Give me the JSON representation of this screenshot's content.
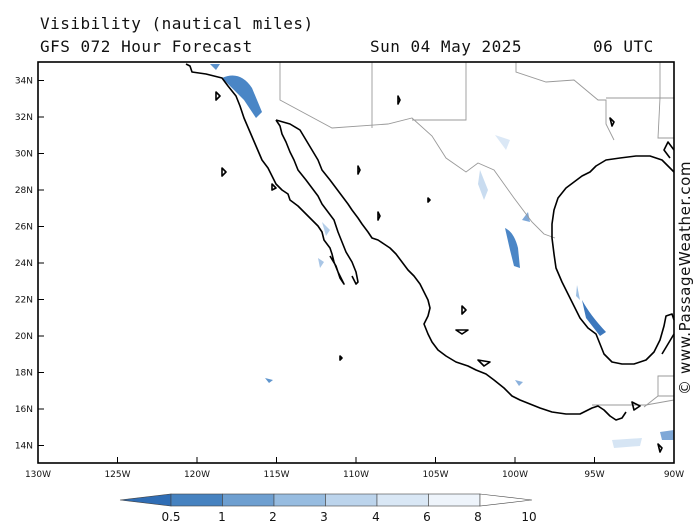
{
  "header": {
    "title": "Visibility (nautical miles)",
    "model": "GFS 072 Hour Forecast",
    "date": "Sun 04 May 2025",
    "time": "06 UTC"
  },
  "credit": "© www.PassageWeather.com",
  "map": {
    "lat_labels": [
      "34N",
      "32N",
      "30N",
      "28N",
      "26N",
      "24N",
      "22N",
      "20N",
      "18N",
      "16N",
      "14N"
    ],
    "lon_labels": [
      "130W",
      "125W",
      "120W",
      "115W",
      "110W",
      "105W",
      "100W",
      "95W",
      "90W"
    ],
    "lat_range": [
      13,
      35
    ],
    "lon_range": [
      -130,
      -90
    ],
    "coast_color": "#000000",
    "border_color": "#999999"
  },
  "colorbar": {
    "labels": [
      "0.5",
      "1",
      "2",
      "3",
      "4",
      "6",
      "8",
      "10"
    ],
    "colors": [
      "#2f6db5",
      "#4682c0",
      "#6e9fd0",
      "#97bce0",
      "#bcd4ec",
      "#d9e7f5",
      "#eef4fb",
      "#ffffff"
    ]
  }
}
